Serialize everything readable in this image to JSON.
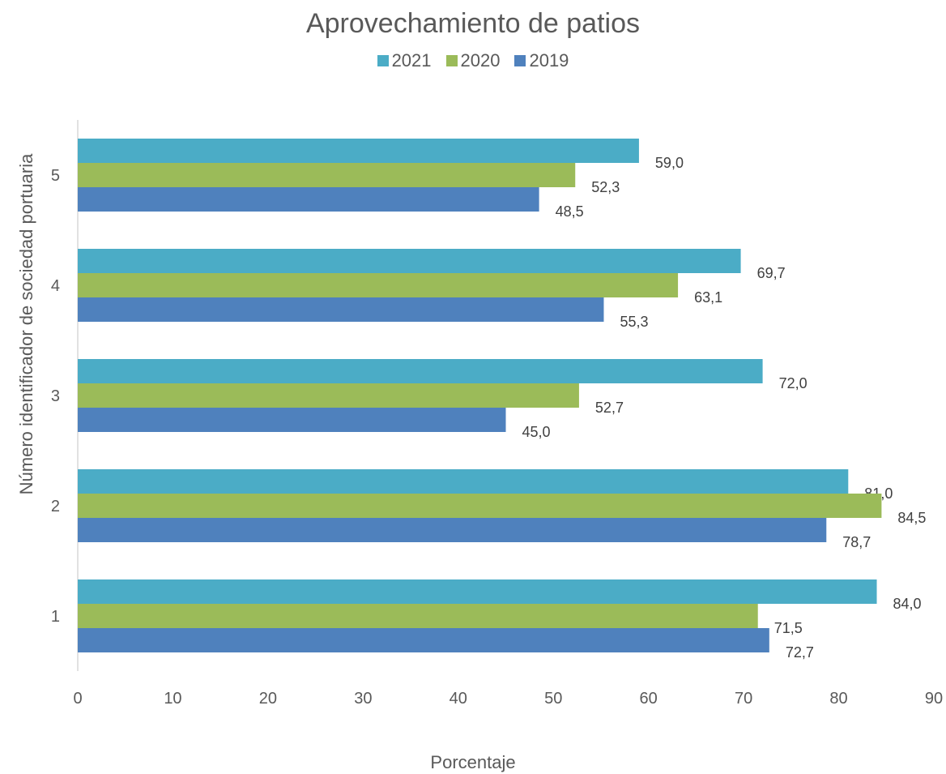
{
  "chart_data": {
    "type": "bar",
    "orientation": "horizontal",
    "title": "Aprovechamiento de patios",
    "xlabel": "Porcentaje",
    "ylabel": "Número identificador de sociedad portuaria",
    "categories": [
      "1",
      "2",
      "3",
      "4",
      "5"
    ],
    "xlim": [
      0,
      90
    ],
    "xticks": [
      "0",
      "10",
      "20",
      "30",
      "40",
      "50",
      "60",
      "70",
      "80",
      "90"
    ],
    "grid": false,
    "legend_position": "top",
    "series": [
      {
        "name": "2021",
        "color": "#4BACC6",
        "values": [
          84.0,
          81.0,
          72.0,
          69.7,
          59.0
        ],
        "labels": [
          "84,0",
          "81,0",
          "72,0",
          "69,7",
          "59,0"
        ]
      },
      {
        "name": "2020",
        "color": "#9BBB59",
        "values": [
          71.5,
          84.5,
          52.7,
          63.1,
          52.3
        ],
        "labels": [
          "71,5",
          "84,5",
          "52,7",
          "63,1",
          "52,3"
        ]
      },
      {
        "name": "2019",
        "color": "#4F81BD",
        "values": [
          72.7,
          78.7,
          45.0,
          55.3,
          48.5
        ],
        "labels": [
          "72,7",
          "78,7",
          "45,0",
          "55,3",
          "48,5"
        ]
      }
    ]
  }
}
